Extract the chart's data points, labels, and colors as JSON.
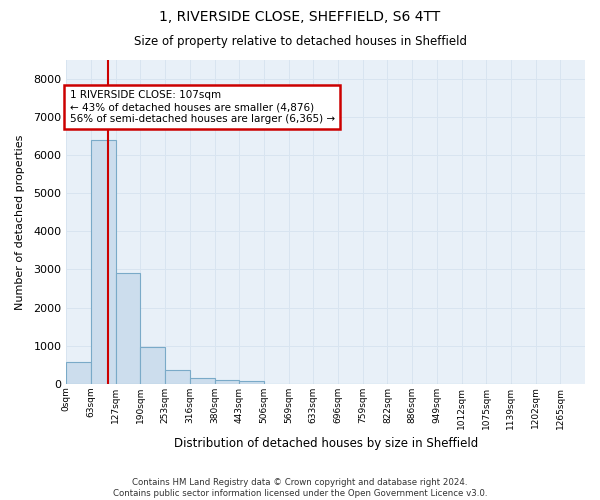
{
  "title_line1": "1, RIVERSIDE CLOSE, SHEFFIELD, S6 4TT",
  "title_line2": "Size of property relative to detached houses in Sheffield",
  "xlabel": "Distribution of detached houses by size in Sheffield",
  "ylabel": "Number of detached properties",
  "bin_labels": [
    "0sqm",
    "63sqm",
    "127sqm",
    "190sqm",
    "253sqm",
    "316sqm",
    "380sqm",
    "443sqm",
    "506sqm",
    "569sqm",
    "633sqm",
    "696sqm",
    "759sqm",
    "822sqm",
    "886sqm",
    "949sqm",
    "1012sqm",
    "1075sqm",
    "1139sqm",
    "1202sqm",
    "1265sqm"
  ],
  "bar_values": [
    580,
    6400,
    2920,
    960,
    360,
    160,
    90,
    60,
    0,
    0,
    0,
    0,
    0,
    0,
    0,
    0,
    0,
    0,
    0,
    0
  ],
  "bar_color": "#ccdded",
  "bar_edge_color": "#7aaac8",
  "property_sqm": 107,
  "ann_line1": "1 RIVERSIDE CLOSE: 107sqm",
  "ann_line2": "← 43% of detached houses are smaller (4,876)",
  "ann_line3": "56% of semi-detached houses are larger (6,365) →",
  "annotation_box_color": "#cc0000",
  "vline_color": "#cc0000",
  "ylim_max": 8500,
  "yticks": [
    0,
    1000,
    2000,
    3000,
    4000,
    5000,
    6000,
    7000,
    8000
  ],
  "grid_color": "#d8e4f0",
  "bg_color": "#e8f0f8",
  "footnote_line1": "Contains HM Land Registry data © Crown copyright and database right 2024.",
  "footnote_line2": "Contains public sector information licensed under the Open Government Licence v3.0."
}
